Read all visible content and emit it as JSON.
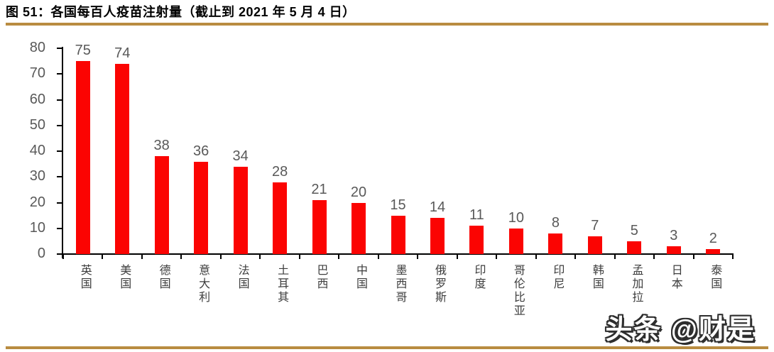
{
  "header": {
    "title": "图 51：各国每百人疫苗注射量（截止到 2021 年 5 月 4 日）",
    "rule_color": "#B98C41"
  },
  "footer": {
    "rule_color": "#B98C41"
  },
  "watermark": {
    "text": "头条 @财是"
  },
  "chart_data": {
    "type": "bar",
    "title": "图 51：各国每百人疫苗注射量（截止到 2021 年 5 月 4 日）",
    "categories": [
      "英国",
      "美国",
      "德国",
      "意大利",
      "法国",
      "土耳其",
      "巴西",
      "中国",
      "墨西哥",
      "俄罗斯",
      "印度",
      "哥伦比亚",
      "印尼",
      "韩国",
      "孟加拉",
      "日本",
      "泰国"
    ],
    "values": [
      75,
      74,
      38,
      36,
      34,
      28,
      21,
      20,
      15,
      14,
      11,
      10,
      8,
      7,
      5,
      3,
      2
    ],
    "xlabel": "",
    "ylabel": "",
    "ylim": [
      0,
      80
    ],
    "yticks": [
      0,
      10,
      20,
      30,
      40,
      50,
      60,
      70,
      80
    ],
    "grid": false,
    "legend": "none",
    "data_labels": true,
    "bar_color": "#FB0402",
    "value_label_color": "#595959",
    "tick_label_color": "#595959",
    "axis_color": "#000000"
  }
}
